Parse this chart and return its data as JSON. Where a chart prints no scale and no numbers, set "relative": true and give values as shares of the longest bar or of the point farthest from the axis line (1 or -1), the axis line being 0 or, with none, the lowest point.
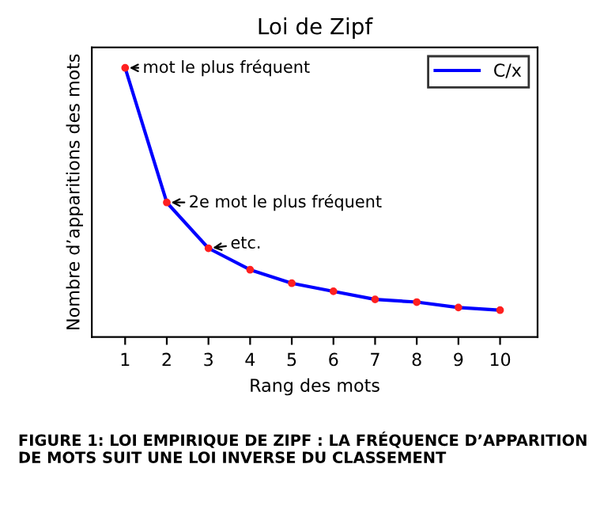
{
  "chart_data": {
    "type": "line",
    "title": "Loi de Zipf",
    "xlabel": "Rang des mots",
    "ylabel": "Nombre d’apparitions des mots",
    "x": [
      1,
      2,
      3,
      4,
      5,
      6,
      7,
      8,
      9,
      10
    ],
    "series": [
      {
        "name": "C/x",
        "color": "#0000ff",
        "values": [
          1,
          0.5,
          0.33,
          0.25,
          0.2,
          0.17,
          0.14,
          0.13,
          0.11,
          0.1
        ]
      }
    ],
    "relative": true,
    "xlim": [
      0.2,
      10.9
    ],
    "xticks": [
      1,
      2,
      3,
      4,
      5,
      6,
      7,
      8,
      9,
      10
    ],
    "marker": "circle",
    "legend": "top right",
    "grid": false,
    "annotations": [
      {
        "text": "mot le plus fréquent",
        "x": 1,
        "y": 1
      },
      {
        "text": "2e mot le plus fréquent",
        "x": 2,
        "y": 0.5
      },
      {
        "text": "etc.",
        "x": 3,
        "y": 0.33
      },
      "FIGURE 1: LOI EMPIRIQUE DE ZIPF : LA FRÉQUENCE D’APPARITION DE MOTS SUIT UNE LOI INVERSE DU CLASSEMENT"
    ]
  }
}
